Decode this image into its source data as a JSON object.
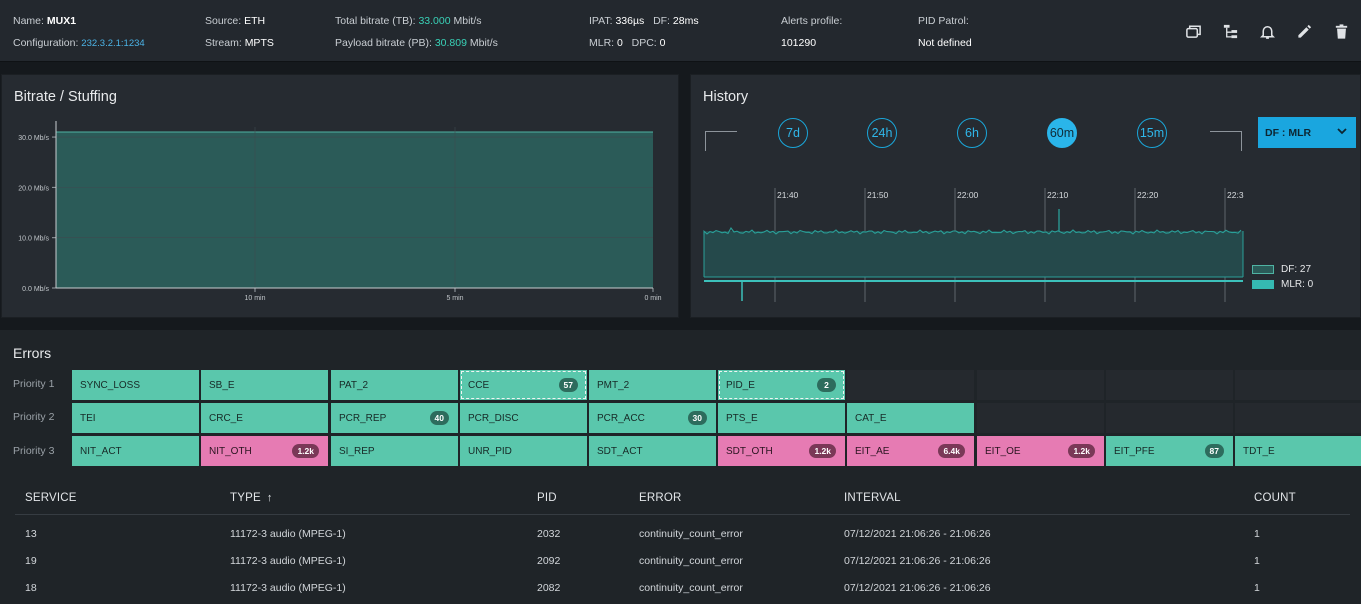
{
  "header": {
    "name_label": "Name:",
    "name_value": "MUX1",
    "config_label": "Configuration:",
    "config_value": "232.3.2.1:1234",
    "source_label": "Source:",
    "source_value": "ETH",
    "stream_label": "Stream:",
    "stream_value": "MPTS",
    "tb_label": "Total bitrate (TB):",
    "tb_value": "33.000",
    "tb_unit": "Mbit/s",
    "pb_label": "Payload bitrate (PB):",
    "pb_value": "30.809",
    "pb_unit": "Mbit/s",
    "ipat_label": "IPAT:",
    "ipat_value": "336µs",
    "df_label": "DF:",
    "df_value": "28ms",
    "mlr_label": "MLR:",
    "mlr_value": "0",
    "dpc_label": "DPC:",
    "dpc_value": "0",
    "alerts_label": "Alerts profile:",
    "alerts_value": "101290",
    "pid_label": "PID Patrol:",
    "pid_value": "Not defined",
    "icons": [
      "copy-icon",
      "hierarchy-icon",
      "bell-icon",
      "pencil-icon",
      "trash-icon"
    ]
  },
  "bitrate": {
    "title": "Bitrate / Stuffing",
    "chart_data": {
      "type": "area",
      "title": "Bitrate / Stuffing",
      "y_ticks": [
        "30.0 Mb/s",
        "20.0 Mb/s",
        "10.0 Mb/s",
        "0.0 Mb/s"
      ],
      "x_ticks": [
        "10 min",
        "5 min",
        "0 min"
      ],
      "ylim": [
        0,
        32
      ],
      "series": [
        {
          "values": [
            31,
            31,
            31,
            31
          ]
        }
      ],
      "grid": true,
      "colors": {
        "fill": "#2b5b58",
        "line": "#4fb3a3"
      }
    }
  },
  "history": {
    "title": "History",
    "ranges": [
      "7d",
      "24h",
      "6h",
      "60m",
      "15m"
    ],
    "active_range": "60m",
    "select_value": "DF : MLR",
    "chart_data": {
      "type": "line",
      "x_ticks": [
        "21:40",
        "21:50",
        "22:00",
        "22:10",
        "22:20",
        "22:3"
      ],
      "series": [
        {
          "name": "DF: 27",
          "color": "#2a9f98"
        },
        {
          "name": "MLR: 0",
          "color": "#3cc1bb"
        }
      ]
    },
    "legend": [
      {
        "label": "DF: 27",
        "color": "#2b5b58",
        "border": "#4fb3a3"
      },
      {
        "label": "MLR: 0",
        "color": "#35b9b2",
        "border": "#35b9b2"
      }
    ]
  },
  "errors": {
    "title": "Errors",
    "priorities": [
      {
        "label": "Priority 1",
        "tiles": [
          {
            "name": "SYNC_LOSS",
            "color": "green"
          },
          {
            "name": "SB_E",
            "color": "green"
          },
          {
            "name": "PAT_2",
            "color": "green"
          },
          {
            "name": "CCE",
            "color": "green",
            "badge": "57",
            "dashed": true
          },
          {
            "name": "PMT_2",
            "color": "green"
          },
          {
            "name": "PID_E",
            "color": "green",
            "badge": "2",
            "dashed": true
          },
          {
            "name": "",
            "color": "empty"
          },
          {
            "name": "",
            "color": "empty"
          },
          {
            "name": "",
            "color": "empty"
          },
          {
            "name": "",
            "color": "empty"
          }
        ]
      },
      {
        "label": "Priority 2",
        "tiles": [
          {
            "name": "TEI",
            "color": "green"
          },
          {
            "name": "CRC_E",
            "color": "green"
          },
          {
            "name": "PCR_REP",
            "color": "green",
            "badge": "40"
          },
          {
            "name": "PCR_DISC",
            "color": "green"
          },
          {
            "name": "PCR_ACC",
            "color": "green",
            "badge": "30"
          },
          {
            "name": "PTS_E",
            "color": "green"
          },
          {
            "name": "CAT_E",
            "color": "green"
          },
          {
            "name": "",
            "color": "empty"
          },
          {
            "name": "",
            "color": "empty"
          },
          {
            "name": "",
            "color": "empty"
          }
        ]
      },
      {
        "label": "Priority 3",
        "tiles": [
          {
            "name": "NIT_ACT",
            "color": "green"
          },
          {
            "name": "NIT_OTH",
            "color": "pink",
            "badge": "1.2k"
          },
          {
            "name": "SI_REP",
            "color": "green"
          },
          {
            "name": "UNR_PID",
            "color": "green"
          },
          {
            "name": "SDT_ACT",
            "color": "green"
          },
          {
            "name": "SDT_OTH",
            "color": "pink",
            "badge": "1.2k"
          },
          {
            "name": "EIT_AE",
            "color": "pink",
            "badge": "6.4k"
          },
          {
            "name": "EIT_OE",
            "color": "pink",
            "badge": "1.2k"
          },
          {
            "name": "EIT_PFE",
            "color": "green",
            "badge": "87"
          },
          {
            "name": "TDT_E",
            "color": "green"
          }
        ]
      }
    ]
  },
  "table": {
    "columns": [
      "SERVICE",
      "TYPE",
      "PID",
      "ERROR",
      "INTERVAL",
      "COUNT"
    ],
    "sort_arrow": "↑",
    "rows": [
      [
        "13",
        "11172-3 audio (MPEG-1)",
        "2032",
        "continuity_count_error",
        "07/12/2021 21:06:26 - 21:06:26",
        "1"
      ],
      [
        "19",
        "11172-3 audio (MPEG-1)",
        "2092",
        "continuity_count_error",
        "07/12/2021 21:06:26 - 21:06:26",
        "1"
      ],
      [
        "18",
        "11172-3 audio (MPEG-1)",
        "2082",
        "continuity_count_error",
        "07/12/2021 21:06:26 - 21:06:26",
        "1"
      ]
    ]
  }
}
